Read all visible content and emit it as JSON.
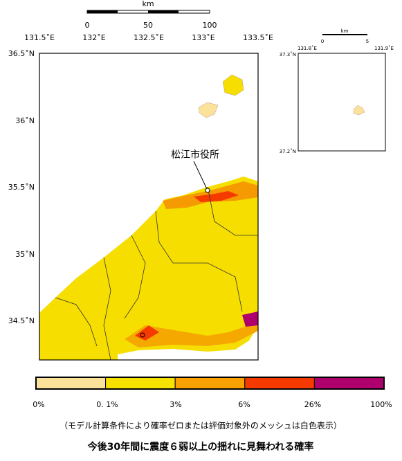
{
  "scale_bar": {
    "unit": "km",
    "ticks": [
      "0",
      "50",
      "100"
    ]
  },
  "main_map": {
    "lon_labels": [
      "131.5˚E",
      "132˚E",
      "132.5˚E",
      "133˚E",
      "133.5˚E"
    ],
    "lat_labels": [
      "36.5˚N",
      "36˚N",
      "35.5˚N",
      "35˚N",
      "34.5˚N"
    ],
    "place_label": "松江市役所"
  },
  "inset_map": {
    "scale_unit": "km",
    "scale_ticks": [
      "0",
      "5"
    ],
    "lon_labels": [
      "131.8˚E",
      "131.9˚E"
    ],
    "lat_labels": [
      "37.3˚N",
      "37.2˚N"
    ]
  },
  "legend": {
    "colors": [
      "#fbe29a",
      "#f7e100",
      "#f9a100",
      "#f53a00",
      "#b0006e"
    ],
    "labels": [
      "0%",
      "0. 1%",
      "3%",
      "6%",
      "26%",
      "100%"
    ]
  },
  "note": "（モデル計算条件により確率ゼロまたは評価対象外のメッシュは白色表示）",
  "title": "今後30年間に震度６弱以上の揺れに見舞われる確率"
}
